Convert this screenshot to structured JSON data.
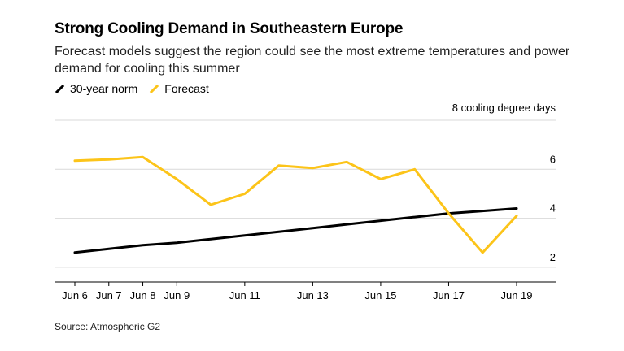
{
  "title": "Strong Cooling Demand in Southeastern Europe",
  "subtitle": "Forecast models suggest the region could see the most extreme temperatures and power demand for cooling this summer",
  "source": "Source: Atmospheric G2",
  "colors": {
    "norm": "#000000",
    "forecast": "#fcc419",
    "grid": "#d9d9d9"
  },
  "chart_data": {
    "type": "line",
    "title": "Strong Cooling Demand in Southeastern Europe",
    "unit_label": "8 cooling degree days",
    "x": [
      "Jun 6",
      "Jun 7",
      "Jun 8",
      "Jun 9",
      "Jun 10",
      "Jun 11",
      "Jun 12",
      "Jun 13",
      "Jun 14",
      "Jun 15",
      "Jun 16",
      "Jun 17",
      "Jun 18",
      "Jun 19"
    ],
    "x_tick_labels": [
      "Jun 6",
      "Jun 7",
      "Jun 8",
      "Jun 9",
      "Jun 11",
      "Jun 13",
      "Jun 15",
      "Jun 17",
      "Jun 19"
    ],
    "y_ticks": [
      2,
      4,
      6,
      8
    ],
    "y_tick_labels": [
      "2",
      "4",
      "6",
      ""
    ],
    "ylim": [
      1.4,
      8
    ],
    "grid": true,
    "legend_position": "top-left",
    "series": [
      {
        "name": "30-year norm",
        "values": [
          2.6,
          2.75,
          2.9,
          3.0,
          3.15,
          3.3,
          3.45,
          3.6,
          3.75,
          3.9,
          4.05,
          4.2,
          4.3,
          4.4
        ]
      },
      {
        "name": "Forecast",
        "values": [
          6.35,
          6.4,
          6.5,
          5.6,
          4.55,
          5.0,
          6.15,
          6.05,
          6.3,
          5.6,
          6.0,
          4.2,
          2.6,
          4.1
        ]
      }
    ]
  }
}
